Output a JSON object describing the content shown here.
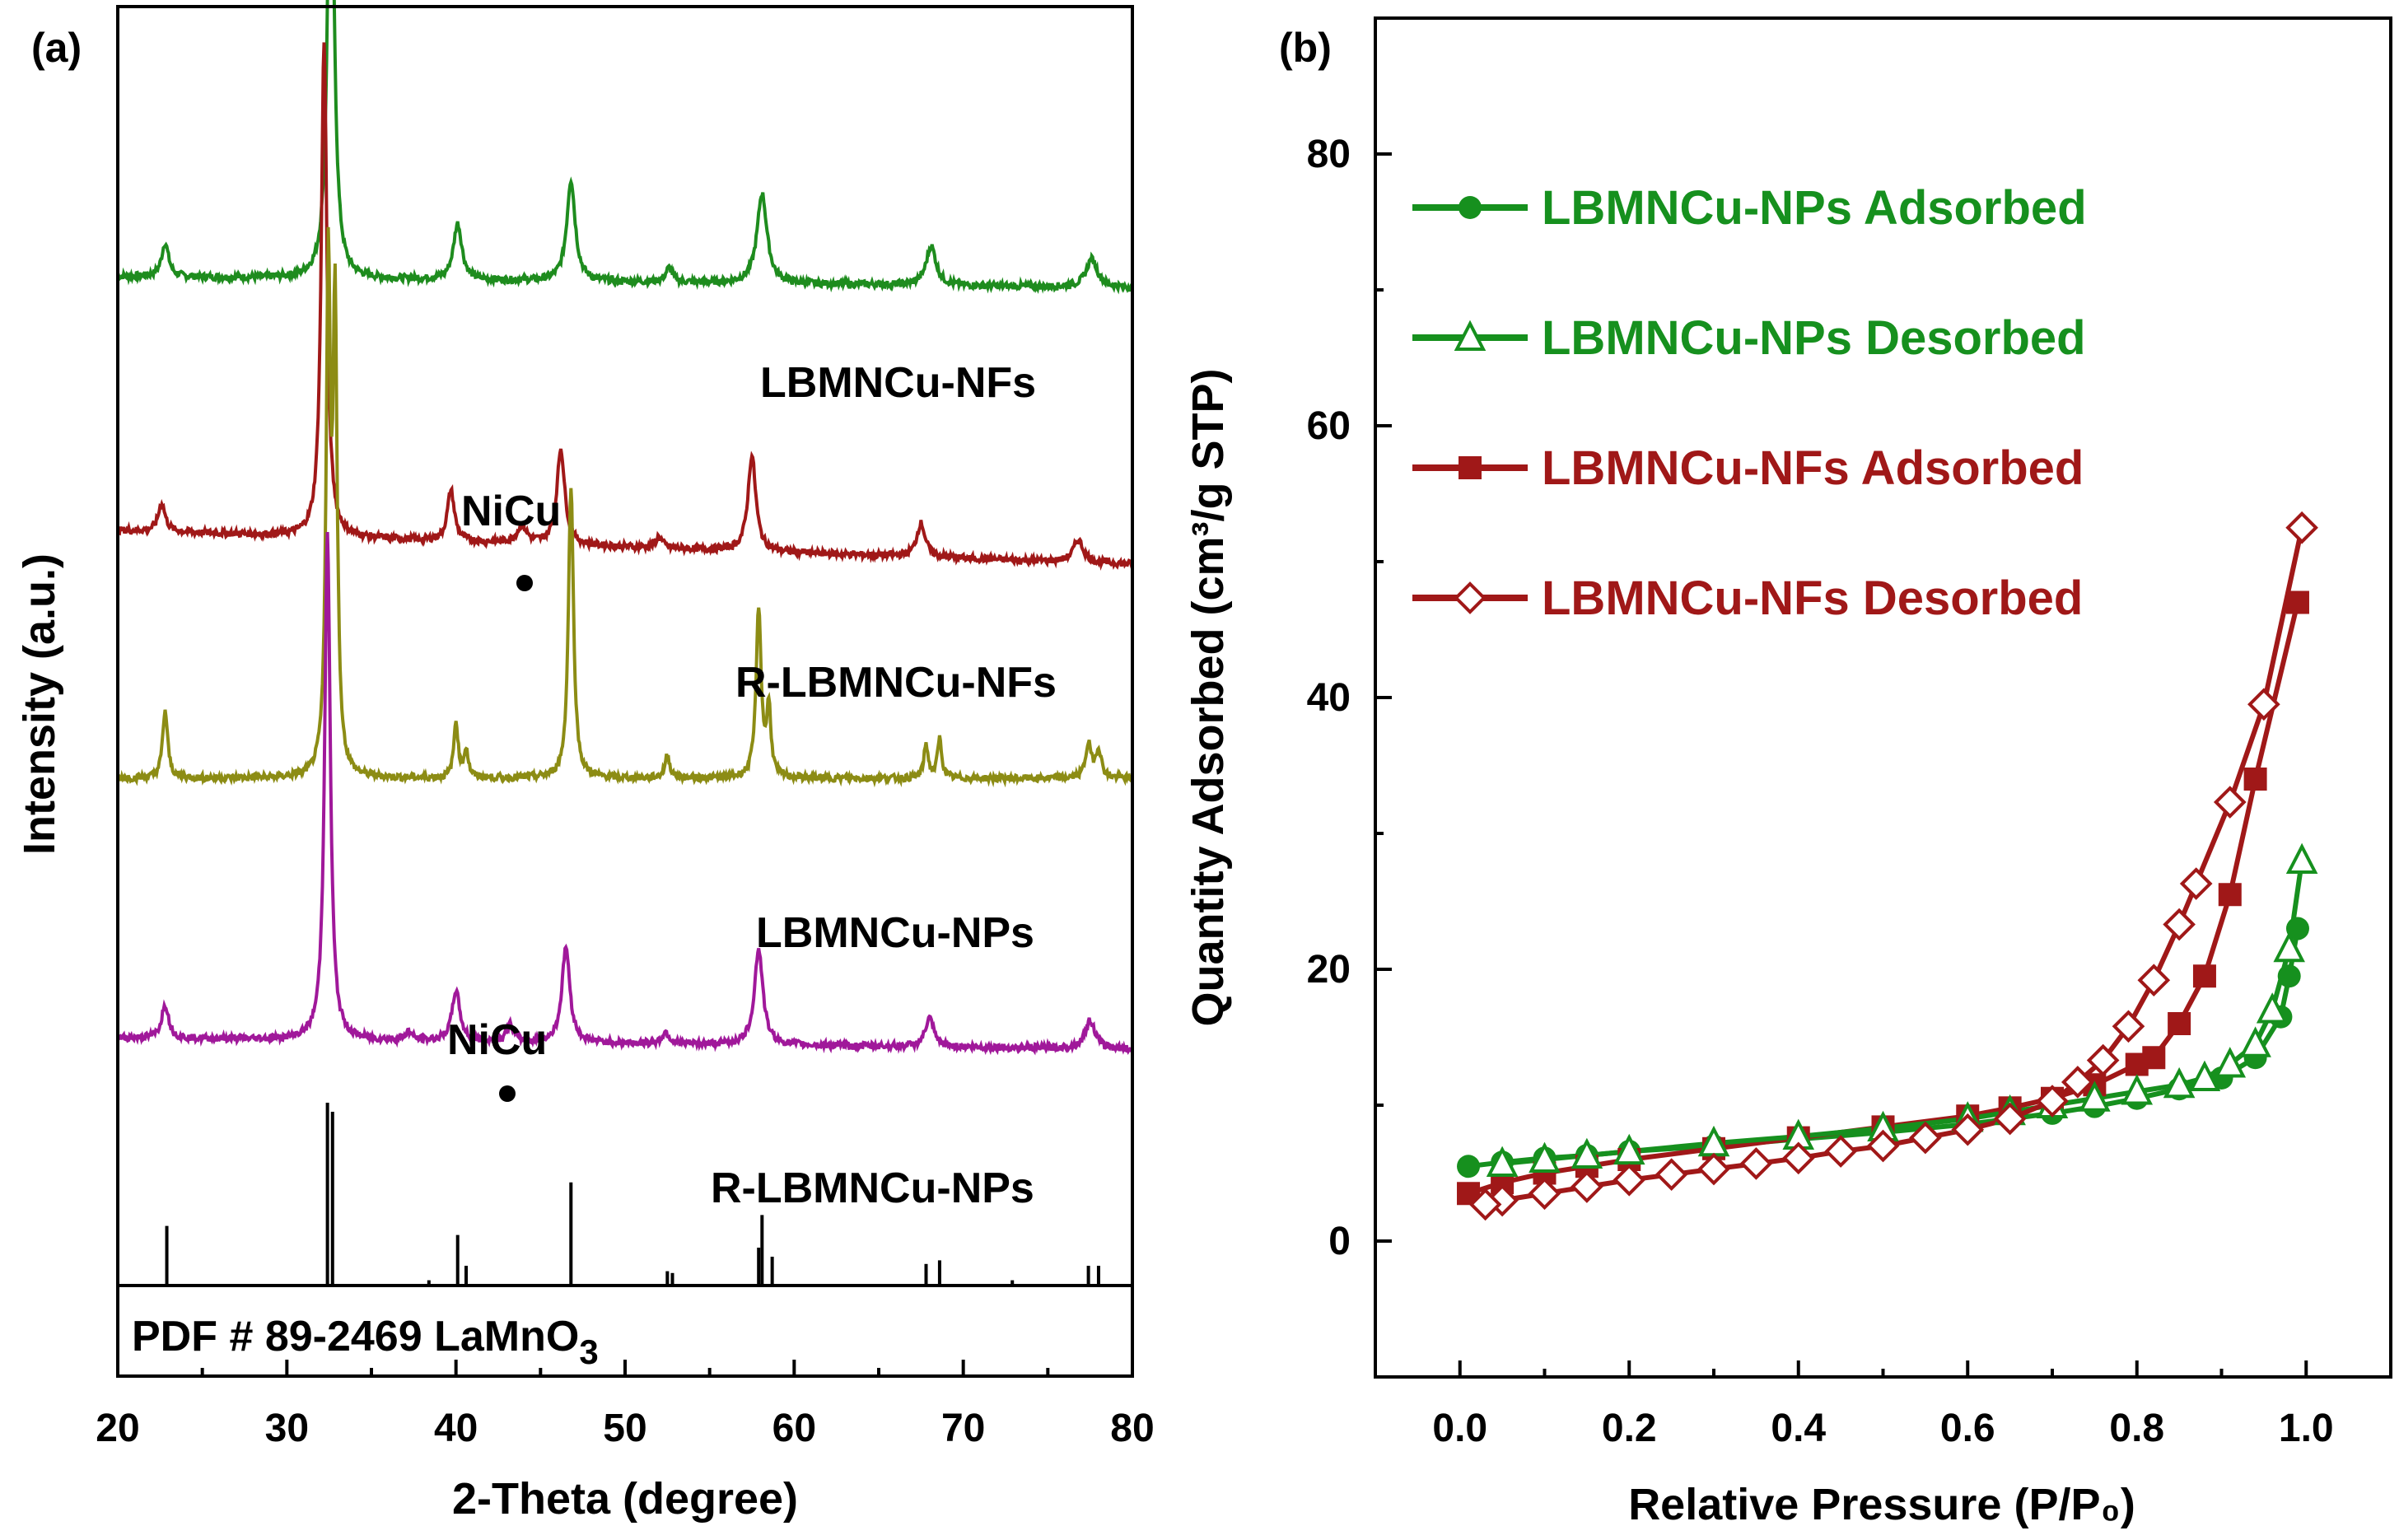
{
  "chart_data": [
    {
      "panel": "(a)",
      "type": "line",
      "xlabel": "2-Theta (degree)",
      "ylabel": "Intensity (a.u.)",
      "xlim": [
        20,
        80
      ],
      "xticks": [
        "20",
        "30",
        "40",
        "50",
        "60",
        "70",
        "80"
      ],
      "colors": {
        "LBMNCu-NFs": "#1e8c1e",
        "R-LBMNCu-NFs": "#a01818",
        "LBMNCu-NPs": "#8c8c14",
        "R-LBMNCu-NPs": "#a0189a"
      },
      "series": [
        {
          "name": "LBMNCu-NFs",
          "label": "LBMNCu-NFs",
          "color": "#1e8c1e",
          "baseline": 0.97,
          "baseline_end": 0.95,
          "peaks": [
            [
              22.8,
              0.06,
              0.25
            ],
            [
              32.6,
              0.9,
              0.22
            ],
            [
              40.1,
              0.1,
              0.3
            ],
            [
              46.8,
              0.18,
              0.3
            ],
            [
              52.6,
              0.025,
              0.25
            ],
            [
              58.1,
              0.16,
              0.35
            ],
            [
              68.1,
              0.07,
              0.35
            ],
            [
              77.6,
              0.05,
              0.4
            ]
          ]
        },
        {
          "name": "R-LBMNCu-NFs",
          "label": "R-LBMNCu-NFs",
          "color": "#a01818",
          "baseline": 0.52,
          "baseline_end": 0.46,
          "peaks": [
            [
              22.6,
              0.05,
              0.25
            ],
            [
              32.2,
              0.88,
              0.2
            ],
            [
              39.7,
              0.09,
              0.25
            ],
            [
              43.9,
              0.03,
              0.35
            ],
            [
              46.2,
              0.17,
              0.28
            ],
            [
              52.0,
              0.02,
              0.25
            ],
            [
              57.5,
              0.17,
              0.28
            ],
            [
              67.5,
              0.06,
              0.3
            ],
            [
              76.8,
              0.04,
              0.35
            ]
          ]
        },
        {
          "name": "LBMNCu-NPs",
          "label": "LBMNCu-NPs",
          "color": "#8c8c14",
          "baseline": 0.08,
          "baseline_end": 0.08,
          "peaks": [
            [
              22.8,
              0.12,
              0.18
            ],
            [
              32.45,
              0.88,
              0.15
            ],
            [
              32.85,
              0.8,
              0.15
            ],
            [
              40.0,
              0.1,
              0.15
            ],
            [
              40.6,
              0.05,
              0.15
            ],
            [
              46.8,
              0.52,
              0.18
            ],
            [
              52.5,
              0.04,
              0.18
            ],
            [
              57.9,
              0.3,
              0.18
            ],
            [
              58.5,
              0.12,
              0.15
            ],
            [
              67.8,
              0.06,
              0.15
            ],
            [
              68.6,
              0.07,
              0.15
            ],
            [
              77.4,
              0.06,
              0.2
            ],
            [
              78.0,
              0.05,
              0.2
            ]
          ]
        },
        {
          "name": "R-LBMNCu-NPs",
          "label": "R-LBMNCu-NPs",
          "color": "#a0189a",
          "baseline": -0.38,
          "baseline_end": -0.4,
          "peaks": [
            [
              22.8,
              0.06,
              0.25
            ],
            [
              32.4,
              0.9,
              0.2
            ],
            [
              37.2,
              0.015,
              0.25
            ],
            [
              40.0,
              0.09,
              0.28
            ],
            [
              43.2,
              0.03,
              0.25
            ],
            [
              46.5,
              0.17,
              0.28
            ],
            [
              52.4,
              0.02,
              0.25
            ],
            [
              57.9,
              0.17,
              0.3
            ],
            [
              68.0,
              0.05,
              0.3
            ],
            [
              77.5,
              0.05,
              0.35
            ]
          ]
        }
      ],
      "reference": {
        "label": "PDF # 89-2469 LaMnO",
        "subscript": "3",
        "sticks": [
          [
            22.9,
            0.32
          ],
          [
            32.4,
            1.0
          ],
          [
            32.7,
            0.95
          ],
          [
            38.4,
            0.02
          ],
          [
            40.1,
            0.27
          ],
          [
            40.6,
            0.1
          ],
          [
            46.8,
            0.56
          ],
          [
            52.5,
            0.07
          ],
          [
            52.8,
            0.06
          ],
          [
            57.9,
            0.2
          ],
          [
            58.1,
            0.38
          ],
          [
            58.7,
            0.15
          ],
          [
            67.8,
            0.11
          ],
          [
            68.6,
            0.13
          ],
          [
            72.9,
            0.02
          ],
          [
            77.4,
            0.1
          ],
          [
            78.0,
            0.1
          ]
        ]
      },
      "annotations": [
        {
          "text": "NiCu",
          "near": "R-LBMNCu-NFs",
          "x": 43.9
        },
        {
          "text": "NiCu",
          "near": "R-LBMNCu-NPs",
          "x": 43.0
        }
      ]
    },
    {
      "panel": "(b)",
      "type": "scatter",
      "xlabel": "Relative Pressure (P/P₀)",
      "ylabel": "Quantity Adsorbed (cm³/g STP)",
      "xlim": [
        -0.1,
        1.1
      ],
      "ylim": [
        -10,
        90
      ],
      "xticks": [
        "0.0",
        "0.2",
        "0.4",
        "0.6",
        "0.8",
        "1.0"
      ],
      "yticks": [
        "0",
        "20",
        "40",
        "60",
        "80"
      ],
      "colors": {
        "green": "#16901e",
        "red": "#a01818"
      },
      "series": [
        {
          "name": "LBMNCu-NPs Adsorbed",
          "color": "#16901e",
          "marker": "circle",
          "x": [
            0.01,
            0.05,
            0.1,
            0.15,
            0.2,
            0.3,
            0.4,
            0.5,
            0.6,
            0.65,
            0.7,
            0.75,
            0.8,
            0.85,
            0.9,
            0.94,
            0.97,
            0.98,
            0.99
          ],
          "y": [
            5.5,
            5.8,
            6.1,
            6.3,
            6.6,
            7.0,
            7.5,
            8.0,
            8.6,
            9.0,
            9.4,
            9.9,
            10.5,
            11.2,
            12.0,
            13.5,
            16.5,
            19.5,
            23
          ]
        },
        {
          "name": "LBMNCu-NPs Desorbed",
          "color": "#16901e",
          "marker": "triangle",
          "x": [
            0.995,
            0.98,
            0.96,
            0.94,
            0.91,
            0.88,
            0.85,
            0.8,
            0.75,
            0.7,
            0.65,
            0.6,
            0.5,
            0.4,
            0.3,
            0.2,
            0.15,
            0.1,
            0.05
          ],
          "y": [
            28,
            21.5,
            17,
            14.5,
            13.0,
            12.0,
            11.5,
            11.0,
            10.5,
            10.0,
            9.5,
            9.0,
            8.3,
            7.7,
            7.2,
            6.6,
            6.3,
            6.0,
            5.7
          ]
        },
        {
          "name": "LBMNCu-NFs Adsorbed",
          "color": "#a01818",
          "marker": "square",
          "x": [
            0.01,
            0.05,
            0.1,
            0.15,
            0.2,
            0.3,
            0.4,
            0.5,
            0.6,
            0.65,
            0.7,
            0.75,
            0.8,
            0.82,
            0.85,
            0.88,
            0.91,
            0.94,
            0.99
          ],
          "y": [
            3.5,
            4.3,
            5.0,
            5.5,
            6.0,
            6.8,
            7.6,
            8.4,
            9.2,
            9.8,
            10.5,
            11.5,
            13.0,
            13.5,
            16,
            19.5,
            25.5,
            34,
            47
          ]
        },
        {
          "name": "LBMNCu-NFs Desorbed",
          "color": "#a01818",
          "marker": "diamond",
          "x": [
            0.995,
            0.95,
            0.91,
            0.87,
            0.85,
            0.82,
            0.79,
            0.76,
            0.73,
            0.7,
            0.65,
            0.6,
            0.55,
            0.5,
            0.45,
            0.4,
            0.35,
            0.3,
            0.25,
            0.2,
            0.15,
            0.1,
            0.05,
            0.03
          ],
          "y": [
            52.5,
            39.5,
            32.3,
            26.3,
            23.3,
            19.2,
            15.8,
            13.3,
            11.7,
            10.3,
            9.0,
            8.2,
            7.6,
            7.0,
            6.6,
            6.1,
            5.7,
            5.3,
            4.9,
            4.5,
            4.0,
            3.5,
            3.0,
            2.7
          ]
        }
      ],
      "legend": {
        "position": "top-left",
        "entries": [
          "LBMNCu-NPs Adsorbed",
          "LBMNCu-NPs Desorbed",
          "LBMNCu-NFs Adsorbed",
          "LBMNCu-NFs Desorbed"
        ]
      }
    }
  ]
}
